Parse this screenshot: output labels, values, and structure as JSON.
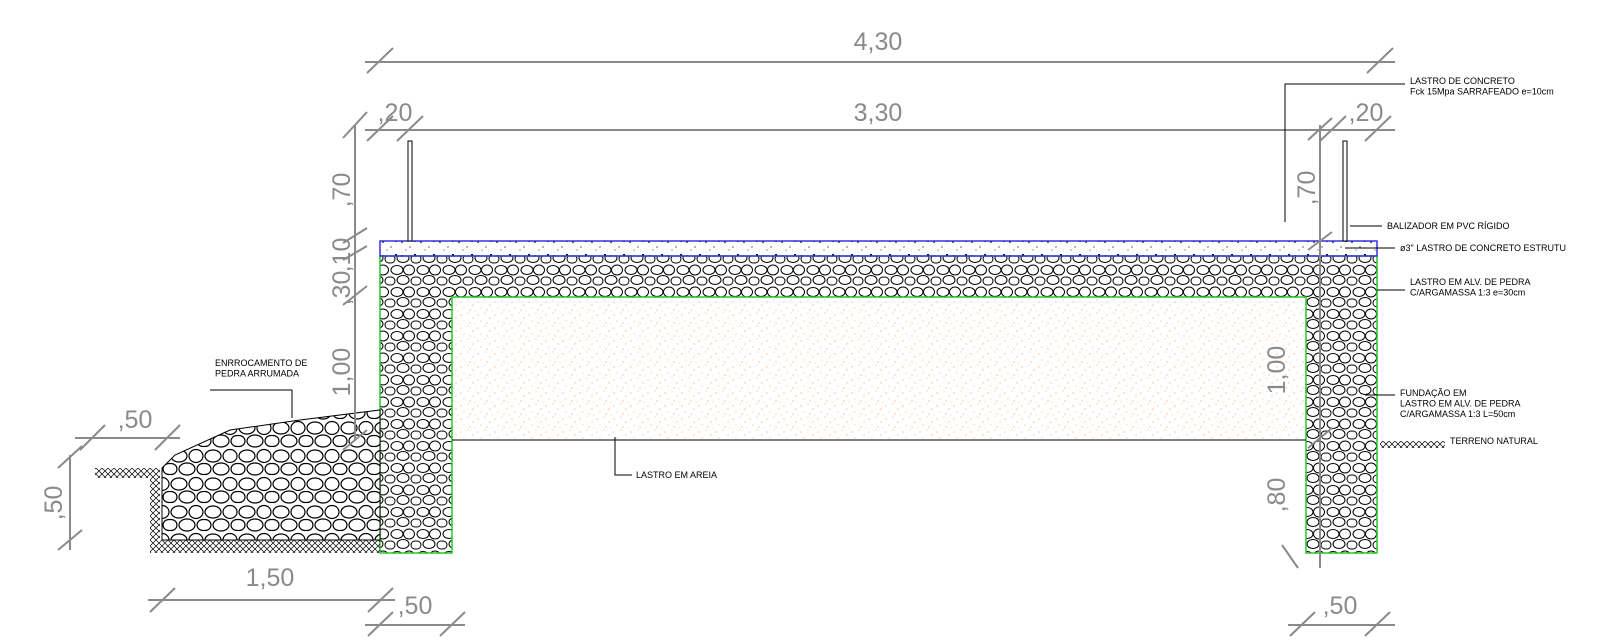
{
  "dimensions": [
    {
      "label": "4,30"
    },
    {
      "label": ",20"
    },
    {
      "label": "3,30"
    },
    {
      "label": ",20"
    },
    {
      "label": ",70"
    },
    {
      "label": ",10"
    },
    {
      "label": ",30"
    },
    {
      "label": "1,00"
    },
    {
      "label": ",70"
    },
    {
      "label": "1,00"
    },
    {
      "label": ",80"
    },
    {
      "label": ",50"
    },
    {
      "label": ",50"
    },
    {
      "label": "1,50"
    },
    {
      "label": ",50"
    },
    {
      "label": ",50"
    }
  ],
  "notes": [
    {
      "lines": [
        "LASTRO DE CONCRETO",
        "Fck 15Mpa SARRAFEADO e=10cm"
      ]
    },
    {
      "lines": [
        "BALIZADOR EM PVC RÍGIDO"
      ]
    },
    {
      "lines": [
        "ø3\" LASTRO DE CONCRETO ESTRUTU"
      ]
    },
    {
      "lines": [
        "LASTRO EM ALV. DE PEDRA",
        "C/ARGAMASSA 1:3 e=30cm"
      ]
    },
    {
      "lines": [
        "FUNDAÇÃO EM",
        "LASTRO EM ALV. DE PEDRA",
        "C/ARGAMASSA 1:3 L=50cm"
      ]
    },
    {
      "lines": [
        "TERRENO NATURAL"
      ]
    },
    {
      "lines": [
        "LASTRO EM AREIA"
      ]
    },
    {
      "lines": [
        "ENRROCAMENTO DE",
        "PEDRA ARRUMADA"
      ]
    }
  ]
}
